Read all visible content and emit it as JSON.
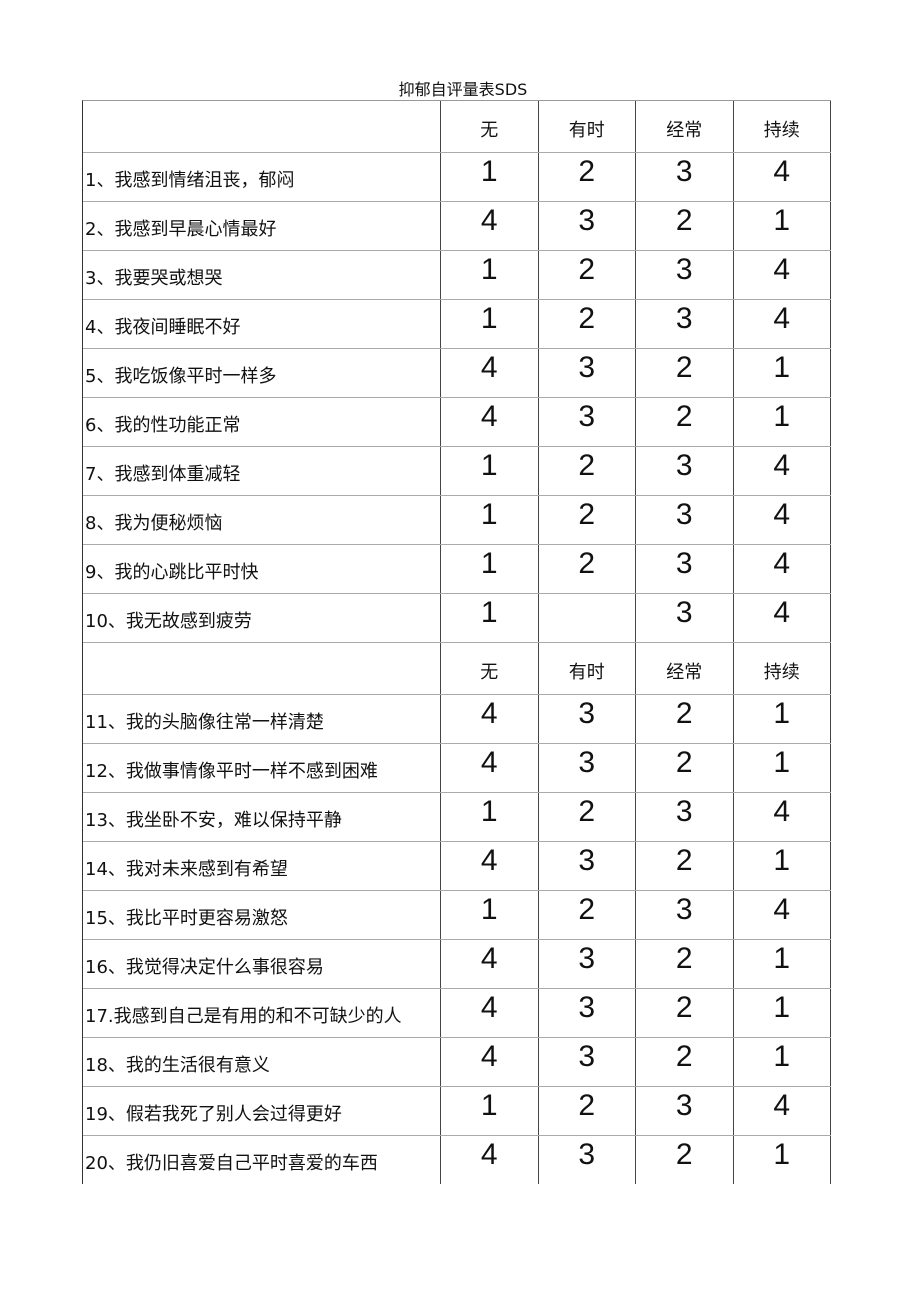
{
  "title": "抑郁自评量表SDS",
  "headers": [
    "无",
    "有时",
    "经常",
    "持续"
  ],
  "rows": [
    {
      "label": "1、我感到情绪沮丧，郁闷",
      "scores": [
        "1",
        "2",
        "3",
        "4"
      ]
    },
    {
      "label": "2、我感到早晨心情最好",
      "scores": [
        "4",
        "3",
        "2",
        "1"
      ]
    },
    {
      "label": "3、我要哭或想哭",
      "scores": [
        "1",
        "2",
        "3",
        "4"
      ]
    },
    {
      "label": "4、我夜间睡眠不好",
      "scores": [
        "1",
        "2",
        "3",
        "4"
      ]
    },
    {
      "label": "5、我吃饭像平时一样多",
      "scores": [
        "4",
        "3",
        "2",
        "1"
      ]
    },
    {
      "label": "6、我的性功能正常",
      "scores": [
        "4",
        "3",
        "2",
        "1"
      ]
    },
    {
      "label": "7、我感到体重减轻",
      "scores": [
        "1",
        "2",
        "3",
        "4"
      ]
    },
    {
      "label": "8、我为便秘烦恼",
      "scores": [
        "1",
        "2",
        "3",
        "4"
      ]
    },
    {
      "label": "9、我的心跳比平时快",
      "scores": [
        "1",
        "2",
        "3",
        "4"
      ]
    },
    {
      "label": "10、我无故感到疲劳",
      "scores": [
        "1",
        "",
        "3",
        "4"
      ]
    },
    {
      "header": true
    },
    {
      "label": "11、我的头脑像往常一样清楚",
      "scores": [
        "4",
        "3",
        "2",
        "1"
      ]
    },
    {
      "label": "12、我做事情像平时一样不感到困难",
      "scores": [
        "4",
        "3",
        "2",
        "1"
      ]
    },
    {
      "label": "13、我坐卧不安，难以保持平静",
      "scores": [
        "1",
        "2",
        "3",
        "4"
      ]
    },
    {
      "label": "14、我对未来感到有希望",
      "scores": [
        "4",
        "3",
        "2",
        "1"
      ]
    },
    {
      "label": "15、我比平时更容易激怒",
      "scores": [
        "1",
        "2",
        "3",
        "4"
      ]
    },
    {
      "label": "16、我觉得决定什么事很容易",
      "scores": [
        "4",
        "3",
        "2",
        "1"
      ]
    },
    {
      "label": "17.我感到自己是有用的和不可缺少的人",
      "scores": [
        "4",
        "3",
        "2",
        "1"
      ]
    },
    {
      "label": "18、我的生活很有意义",
      "scores": [
        "4",
        "3",
        "2",
        "1"
      ]
    },
    {
      "label": "19、假若我死了别人会过得更好",
      "scores": [
        "1",
        "2",
        "3",
        "4"
      ]
    },
    {
      "label": "20、我仍旧喜爱自己平时喜爱的车西",
      "scores": [
        "4",
        "3",
        "2",
        "1"
      ]
    }
  ]
}
